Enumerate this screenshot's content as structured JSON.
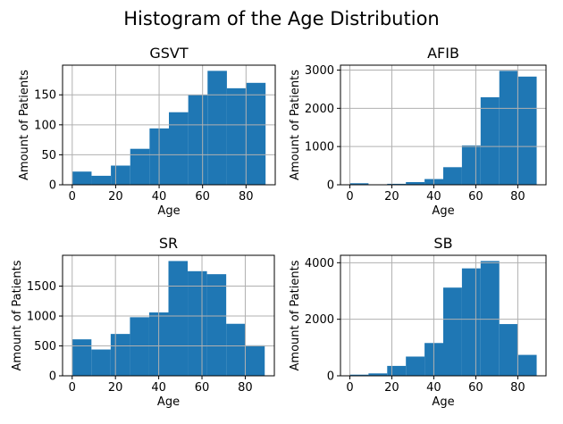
{
  "title": "Histogram of the Age Distribution",
  "colors": {
    "bar": "#1f77b4",
    "grid": "#b0b0b0",
    "spine": "#000000",
    "text": "#000000",
    "background": "#ffffff"
  },
  "chart_data": [
    {
      "type": "bar",
      "title": "GSVT",
      "xlabel": "Age",
      "ylabel": "Amount of Patients",
      "bin_start": 0,
      "bin_end": 89,
      "values": [
        22,
        15,
        32,
        60,
        94,
        121,
        150,
        190,
        161,
        170
      ],
      "xticks": [
        0,
        20,
        40,
        60,
        80
      ],
      "yticks": [
        0,
        50,
        100,
        150
      ],
      "xlim": [
        -4.45,
        93.45
      ],
      "ylim": [
        0,
        199.5
      ],
      "grid": true
    },
    {
      "type": "bar",
      "title": "AFIB",
      "xlabel": "Age",
      "ylabel": "Amount of Patients",
      "bin_start": 0,
      "bin_end": 89,
      "values": [
        40,
        8,
        25,
        70,
        150,
        460,
        1030,
        2290,
        2980,
        2830
      ],
      "xticks": [
        0,
        20,
        40,
        60,
        80
      ],
      "yticks": [
        0,
        1000,
        2000,
        3000
      ],
      "xlim": [
        -4.45,
        93.45
      ],
      "ylim": [
        0,
        3129
      ],
      "grid": true
    },
    {
      "type": "bar",
      "title": "SR",
      "xlabel": "Age",
      "ylabel": "Amount of Patients",
      "bin_start": 0,
      "bin_end": 89,
      "values": [
        610,
        440,
        700,
        980,
        1060,
        1920,
        1750,
        1700,
        870,
        510
      ],
      "xticks": [
        0,
        20,
        40,
        60,
        80
      ],
      "yticks": [
        0,
        500,
        1000,
        1500
      ],
      "xlim": [
        -4.45,
        93.45
      ],
      "ylim": [
        0,
        2016
      ],
      "grid": true
    },
    {
      "type": "bar",
      "title": "SB",
      "xlabel": "Age",
      "ylabel": "Amount of Patients",
      "bin_start": 0,
      "bin_end": 89,
      "values": [
        40,
        85,
        350,
        680,
        1160,
        3120,
        3800,
        4060,
        1830,
        740
      ],
      "xticks": [
        0,
        20,
        40,
        60,
        80
      ],
      "yticks": [
        0,
        2000,
        4000
      ],
      "xlim": [
        -4.45,
        93.45
      ],
      "ylim": [
        0,
        4263
      ],
      "grid": true
    }
  ]
}
